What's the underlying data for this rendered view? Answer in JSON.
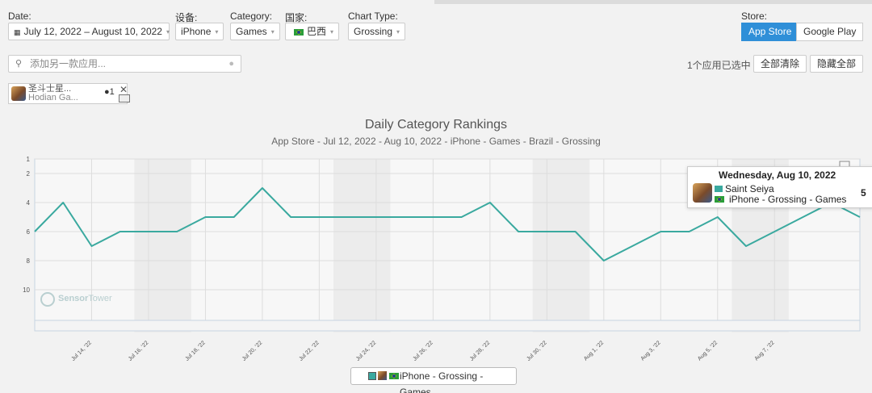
{
  "filters": {
    "date_label": "Date:",
    "date_value": "July 12, 2022 – August 10, 2022",
    "device_label": "设备:",
    "device_value": "iPhone",
    "category_label": "Category:",
    "category_value": "Games",
    "country_label": "国家:",
    "country_value": "巴西",
    "chart_type_label": "Chart Type:",
    "chart_type_value": "Grossing",
    "store_label": "Store:",
    "store_options": [
      "App Store",
      "Google Play"
    ],
    "store_selected": "App Store"
  },
  "search": {
    "placeholder": "添加另一款应用..."
  },
  "selection": {
    "count_text": "1个应用已选中",
    "clear_all": "全部清除",
    "hide_all": "隐藏全部"
  },
  "app_chip": {
    "name": "圣斗士星...",
    "publisher": "Hodian Ga...",
    "rank_badge": "1"
  },
  "tooltip": {
    "date": "Wednesday, Aug 10, 2022",
    "app": "Saint Seiya",
    "line": "iPhone - Grossing - Games",
    "rank": "5"
  },
  "legend": {
    "text": "iPhone - Grossing - Games"
  },
  "watermark": {
    "brand_a": "Sensor",
    "brand_b": "Tower"
  },
  "colors": {
    "series": "#3aa99f",
    "accent": "#2f8fd8",
    "weekend_band": "#ececec"
  },
  "chart_data": {
    "type": "line",
    "title": "Daily Category Rankings",
    "subtitle": "App Store - Jul 12, 2022 - Aug 10, 2022 - iPhone - Games - Brazil - Grossing",
    "x": [
      "2022-07-12",
      "2022-07-13",
      "2022-07-14",
      "2022-07-15",
      "2022-07-16",
      "2022-07-17",
      "2022-07-18",
      "2022-07-19",
      "2022-07-20",
      "2022-07-21",
      "2022-07-22",
      "2022-07-23",
      "2022-07-24",
      "2022-07-25",
      "2022-07-26",
      "2022-07-27",
      "2022-07-28",
      "2022-07-29",
      "2022-07-30",
      "2022-07-31",
      "2022-08-01",
      "2022-08-02",
      "2022-08-03",
      "2022-08-04",
      "2022-08-05",
      "2022-08-06",
      "2022-08-07",
      "2022-08-08",
      "2022-08-09",
      "2022-08-10"
    ],
    "series": [
      {
        "values": [
          6,
          4,
          7,
          6,
          6,
          6,
          5,
          5,
          3,
          5,
          5,
          5,
          5,
          5,
          5,
          5,
          4,
          6,
          6,
          6,
          8,
          7,
          6,
          6,
          5,
          7,
          6,
          5,
          4,
          5
        ]
      }
    ],
    "x_tick_labels": [
      "Jul 14, '22",
      "Jul 16, '22",
      "Jul 18, '22",
      "Jul 20, '22",
      "Jul 22, '22",
      "Jul 24, '22",
      "Jul 26, '22",
      "Jul 28, '22",
      "Jul 30, '22",
      "Aug 1, '22",
      "Aug 3, '22",
      "Aug 5, '22",
      "Aug 7, '22"
    ],
    "x_tick_dates": [
      "2022-07-14",
      "2022-07-16",
      "2022-07-18",
      "2022-07-20",
      "2022-07-22",
      "2022-07-24",
      "2022-07-26",
      "2022-07-28",
      "2022-07-30",
      "2022-08-01",
      "2022-08-03",
      "2022-08-05",
      "2022-08-07"
    ],
    "y_ticks": [
      1,
      2,
      4,
      6,
      8,
      10
    ],
    "y_reversed": true,
    "ylim": [
      1,
      12
    ],
    "weekend_bands": [
      [
        "2022-07-16",
        "2022-07-17"
      ],
      [
        "2022-07-23",
        "2022-07-24"
      ],
      [
        "2022-07-30",
        "2022-07-31"
      ],
      [
        "2022-08-06",
        "2022-08-07"
      ]
    ],
    "grid": true
  }
}
